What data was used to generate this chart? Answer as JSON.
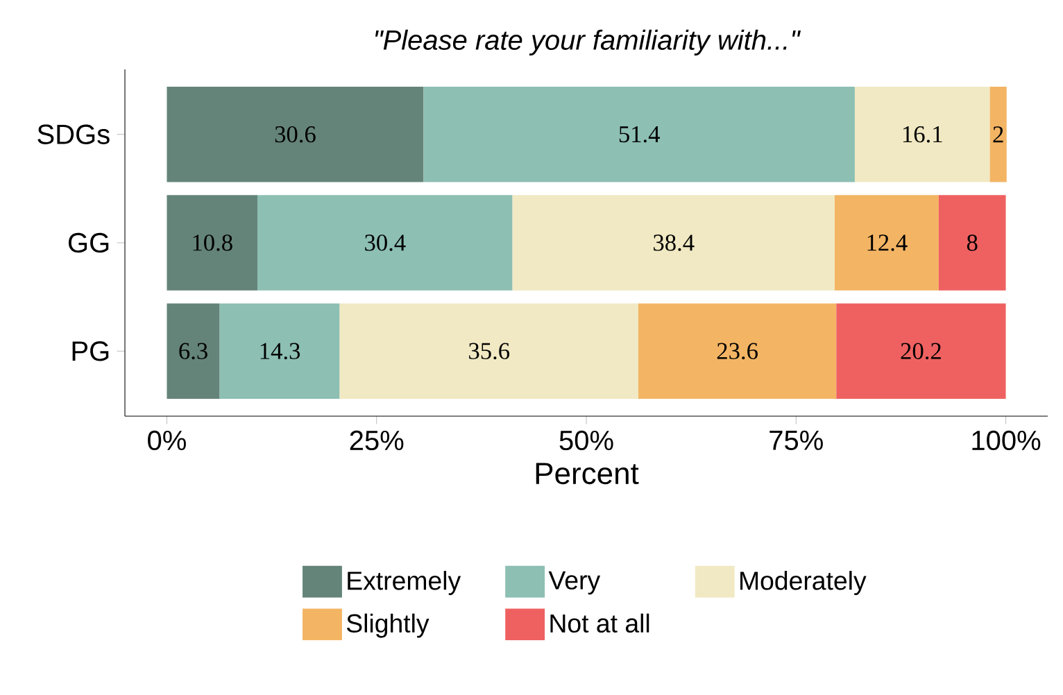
{
  "chart_data": {
    "type": "bar",
    "orientation": "horizontal",
    "stacked": true,
    "data_labels": true,
    "title": "\"Please rate your familiarity with...\"",
    "xlabel": "Percent",
    "categories": [
      "SDGs",
      "GG",
      "PG"
    ],
    "series": [
      {
        "name": "Extremely",
        "color": "#658479",
        "values": [
          30.6,
          10.8,
          6.3
        ]
      },
      {
        "name": "Very",
        "color": "#8dbfb3",
        "values": [
          51.4,
          30.4,
          14.3
        ]
      },
      {
        "name": "Moderately",
        "color": "#f1e9c3",
        "values": [
          16.1,
          38.4,
          35.6
        ]
      },
      {
        "name": "Slightly",
        "color": "#f3b564",
        "values": [
          2,
          12.4,
          23.6
        ]
      },
      {
        "name": "Not at all",
        "color": "#ef6161",
        "values": [
          null,
          8,
          20.2
        ]
      }
    ],
    "xlim": [
      -5,
      105
    ],
    "xticks": [
      {
        "value": 0,
        "label": "0%"
      },
      {
        "value": 25,
        "label": "25%"
      },
      {
        "value": 50,
        "label": "50%"
      },
      {
        "value": 75,
        "label": "75%"
      },
      {
        "value": 100,
        "label": "100%"
      }
    ],
    "grid": false,
    "legend": "bottom"
  }
}
